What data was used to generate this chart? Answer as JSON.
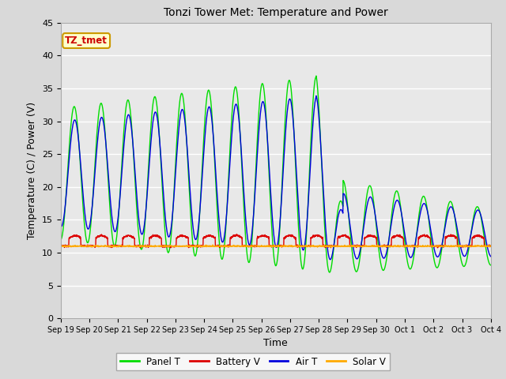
{
  "title": "Tonzi Tower Met: Temperature and Power",
  "xlabel": "Time",
  "ylabel": "Temperature (C) / Power (V)",
  "ylim": [
    0,
    45
  ],
  "yticks": [
    0,
    5,
    10,
    15,
    20,
    25,
    30,
    35,
    40,
    45
  ],
  "xtick_labels": [
    "Sep 19",
    "Sep 20",
    "Sep 21",
    "Sep 22",
    "Sep 23",
    "Sep 24",
    "Sep 25",
    "Sep 26",
    "Sep 27",
    "Sep 28",
    "Sep 29",
    "Sep 30",
    "Oct 1",
    "Oct 2",
    "Oct 3",
    "Oct 4"
  ],
  "annotation_text": "TZ_tmet",
  "annotation_color": "#cc0000",
  "annotation_bg": "#ffffcc",
  "annotation_border": "#cc9900",
  "fig_bg": "#d9d9d9",
  "plot_bg": "#e8e8e8",
  "grid_color": "#ffffff",
  "colors": {
    "panel_t": "#00dd00",
    "battery_v": "#dd0000",
    "air_t": "#0000dd",
    "solar_v": "#ffaa00"
  },
  "legend_labels": [
    "Panel T",
    "Battery V",
    "Air T",
    "Solar V"
  ]
}
